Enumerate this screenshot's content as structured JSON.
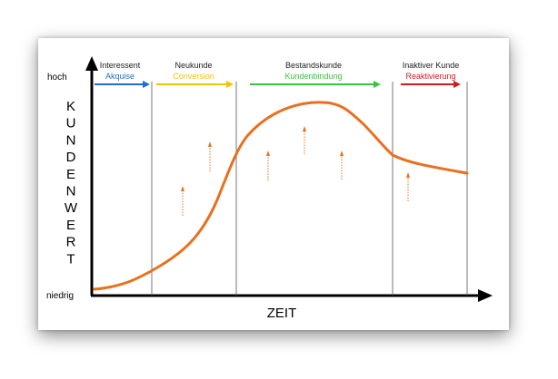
{
  "chart_data": {
    "type": "line",
    "y_axis": {
      "high_label": "hoch",
      "low_label": "niedrig",
      "title_letters": [
        "K",
        "U",
        "N",
        "D",
        "E",
        "N",
        "W",
        "E",
        "R",
        "T"
      ]
    },
    "x_axis": {
      "label": "ZEIT"
    },
    "phases": [
      {
        "name": "Interessent",
        "activity": "Akquise",
        "color": "#1d6fd1"
      },
      {
        "name": "Neukunde",
        "activity": "Conversion",
        "color": "#f5c400"
      },
      {
        "name": "Bestandskunde",
        "activity": "Kundenbindung",
        "color": "#3cc43c"
      },
      {
        "name": "Inaktiver Kunde",
        "activity": "Reaktivierung",
        "color": "#d01b1b"
      }
    ],
    "curve_color": "#e8701e",
    "arrow_color": "#e8701e"
  }
}
